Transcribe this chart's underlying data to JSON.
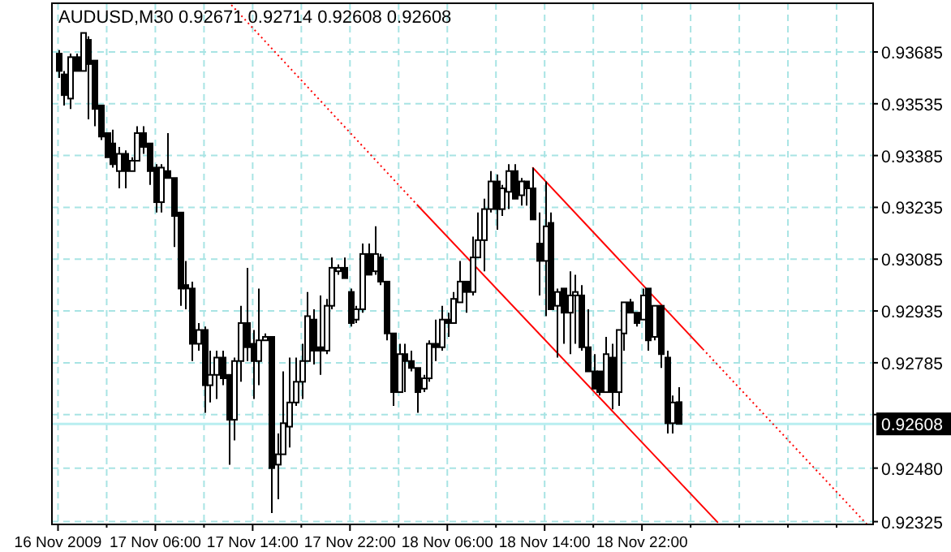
{
  "chart_data": {
    "type": "candlestick",
    "title": "AUDUSD,M30  0.92671 0.92714 0.92608 0.92608",
    "color": "#000000",
    "x": [
      "2009-11-16T22:00",
      "2009-11-16T22:30",
      "2009-11-16T23:00",
      "2009-11-16T23:30",
      "2009-11-17T00:00",
      "2009-11-17T00:30",
      "2009-11-17T01:00",
      "2009-11-17T01:30",
      "2009-11-17T02:00",
      "2009-11-17T02:30",
      "2009-11-17T03:00",
      "2009-11-17T03:30",
      "2009-11-17T04:00",
      "2009-11-17T04:30",
      "2009-11-17T05:00",
      "2009-11-17T05:30",
      "2009-11-17T06:00",
      "2009-11-17T06:30",
      "2009-11-17T07:00",
      "2009-11-17T07:30",
      "2009-11-17T08:00",
      "2009-11-17T08:30",
      "2009-11-17T09:00",
      "2009-11-17T09:30",
      "2009-11-17T10:00",
      "2009-11-17T10:30",
      "2009-11-17T11:00",
      "2009-11-17T11:30",
      "2009-11-17T12:00",
      "2009-11-17T12:30",
      "2009-11-17T13:00",
      "2009-11-17T13:30",
      "2009-11-17T14:00",
      "2009-11-17T14:30",
      "2009-11-17T15:00",
      "2009-11-17T15:30",
      "2009-11-17T16:00",
      "2009-11-17T16:30",
      "2009-11-17T17:00",
      "2009-11-17T17:30",
      "2009-11-17T18:00",
      "2009-11-17T18:30",
      "2009-11-17T19:00",
      "2009-11-17T19:30",
      "2009-11-17T20:00",
      "2009-11-17T20:30",
      "2009-11-17T21:00",
      "2009-11-17T21:30",
      "2009-11-17T22:00",
      "2009-11-17T22:30",
      "2009-11-17T23:00",
      "2009-11-17T23:30",
      "2009-11-18T00:00",
      "2009-11-18T00:30",
      "2009-11-18T01:00",
      "2009-11-18T01:30",
      "2009-11-18T02:00",
      "2009-11-18T02:30",
      "2009-11-18T03:00",
      "2009-11-18T03:30",
      "2009-11-18T04:00",
      "2009-11-18T04:30",
      "2009-11-18T05:00",
      "2009-11-18T05:30",
      "2009-11-18T06:00",
      "2009-11-18T06:30",
      "2009-11-18T07:00",
      "2009-11-18T07:30",
      "2009-11-18T08:00",
      "2009-11-18T08:30",
      "2009-11-18T09:00",
      "2009-11-18T09:30",
      "2009-11-18T10:00",
      "2009-11-18T10:30",
      "2009-11-18T11:00",
      "2009-11-18T11:30",
      "2009-11-18T12:00",
      "2009-11-18T12:30",
      "2009-11-18T13:00",
      "2009-11-18T13:30",
      "2009-11-18T14:00",
      "2009-11-18T14:30",
      "2009-11-18T15:00",
      "2009-11-18T15:30",
      "2009-11-18T16:00",
      "2009-11-18T16:30",
      "2009-11-18T17:00",
      "2009-11-18T17:30",
      "2009-11-18T18:00",
      "2009-11-18T18:30",
      "2009-11-18T19:00",
      "2009-11-18T19:30",
      "2009-11-18T20:00",
      "2009-11-18T20:30",
      "2009-11-18T21:00",
      "2009-11-18T21:30",
      "2009-11-18T22:00",
      "2009-11-18T22:30",
      "2009-11-18T23:00",
      "2009-11-18T23:30",
      "2009-11-19T00:00",
      "2009-11-19T00:30",
      "2009-11-19T01:00"
    ],
    "ohlc": [
      [
        0.9368,
        0.9369,
        0.9361,
        0.9363
      ],
      [
        0.9362,
        0.9363,
        0.9353,
        0.9356
      ],
      [
        0.9355,
        0.9368,
        0.9352,
        0.9367
      ],
      [
        0.9367,
        0.9368,
        0.9363,
        0.9363
      ],
      [
        0.9363,
        0.9374,
        0.9363,
        0.9374
      ],
      [
        0.9372,
        0.9373,
        0.9349,
        0.9365
      ],
      [
        0.9366,
        0.9366,
        0.9347,
        0.9352
      ],
      [
        0.9353,
        0.9353,
        0.9343,
        0.9344
      ],
      [
        0.9345,
        0.9345,
        0.9338,
        0.9338
      ],
      [
        0.9342,
        0.9346,
        0.9335,
        0.9336
      ],
      [
        0.9334,
        0.9341,
        0.9329,
        0.9339
      ],
      [
        0.9339,
        0.934,
        0.9329,
        0.9334
      ],
      [
        0.9334,
        0.9338,
        0.9334,
        0.9337
      ],
      [
        0.9337,
        0.9347,
        0.9337,
        0.9345
      ],
      [
        0.9345,
        0.9347,
        0.9339,
        0.9341
      ],
      [
        0.9342,
        0.9342,
        0.933,
        0.9334
      ],
      [
        0.9335,
        0.9336,
        0.9322,
        0.9325
      ],
      [
        0.9325,
        0.9336,
        0.9322,
        0.9335
      ],
      [
        0.9334,
        0.9345,
        0.9332,
        0.9332
      ],
      [
        0.9332,
        0.9332,
        0.9312,
        0.9321
      ],
      [
        0.9322,
        0.9322,
        0.9295,
        0.93
      ],
      [
        0.9301,
        0.9308,
        0.9294,
        0.93
      ],
      [
        0.93,
        0.9302,
        0.9279,
        0.9284
      ],
      [
        0.9284,
        0.929,
        0.9282,
        0.9288
      ],
      [
        0.9288,
        0.9289,
        0.9264,
        0.9272
      ],
      [
        0.9272,
        0.9282,
        0.9267,
        0.9275
      ],
      [
        0.9275,
        0.9282,
        0.9268,
        0.928
      ],
      [
        0.928,
        0.9282,
        0.9272,
        0.9274
      ],
      [
        0.9275,
        0.9275,
        0.9249,
        0.9262
      ],
      [
        0.9262,
        0.928,
        0.9256,
        0.9279
      ],
      [
        0.9279,
        0.9295,
        0.9273,
        0.929
      ],
      [
        0.929,
        0.9306,
        0.9279,
        0.9283
      ],
      [
        0.9284,
        0.9288,
        0.9268,
        0.9279
      ],
      [
        0.9279,
        0.93,
        0.9272,
        0.9285
      ],
      [
        0.9285,
        0.9287,
        0.9285,
        0.9286
      ],
      [
        0.9286,
        0.9286,
        0.9235,
        0.9248
      ],
      [
        0.9249,
        0.9258,
        0.9239,
        0.9252
      ],
      [
        0.9252,
        0.9276,
        0.9252,
        0.9261
      ],
      [
        0.926,
        0.928,
        0.9254,
        0.9267
      ],
      [
        0.9267,
        0.928,
        0.9266,
        0.9273
      ],
      [
        0.9273,
        0.9284,
        0.9268,
        0.9279
      ],
      [
        0.9279,
        0.9299,
        0.9279,
        0.9292
      ],
      [
        0.9291,
        0.9294,
        0.9278,
        0.9282
      ],
      [
        0.9283,
        0.9298,
        0.9275,
        0.9282
      ],
      [
        0.9282,
        0.9297,
        0.9281,
        0.9295
      ],
      [
        0.9295,
        0.9309,
        0.9294,
        0.9306
      ],
      [
        0.9305,
        0.9307,
        0.9304,
        0.9306
      ],
      [
        0.9306,
        0.9309,
        0.9303,
        0.9303
      ],
      [
        0.9299,
        0.93,
        0.9289,
        0.929
      ],
      [
        0.9291,
        0.9295,
        0.929,
        0.9294
      ],
      [
        0.9294,
        0.9313,
        0.9293,
        0.931
      ],
      [
        0.931,
        0.9313,
        0.9304,
        0.9304
      ],
      [
        0.9305,
        0.9318,
        0.9304,
        0.931
      ],
      [
        0.9309,
        0.931,
        0.9301,
        0.9302
      ],
      [
        0.9302,
        0.9302,
        0.9285,
        0.9287
      ],
      [
        0.9287,
        0.9287,
        0.9266,
        0.927
      ],
      [
        0.927,
        0.9284,
        0.927,
        0.9281
      ],
      [
        0.9281,
        0.9284,
        0.927,
        0.9279
      ],
      [
        0.9279,
        0.9282,
        0.9276,
        0.9277
      ],
      [
        0.9277,
        0.9277,
        0.9264,
        0.927
      ],
      [
        0.9271,
        0.9275,
        0.927,
        0.9274
      ],
      [
        0.9274,
        0.9285,
        0.9273,
        0.9284
      ],
      [
        0.9284,
        0.9291,
        0.9279,
        0.9283
      ],
      [
        0.9283,
        0.9295,
        0.9282,
        0.9291
      ],
      [
        0.9291,
        0.9293,
        0.9286,
        0.929
      ],
      [
        0.929,
        0.9299,
        0.929,
        0.9297
      ],
      [
        0.9296,
        0.9308,
        0.9296,
        0.9302
      ],
      [
        0.9302,
        0.9302,
        0.9293,
        0.9299
      ],
      [
        0.9299,
        0.9315,
        0.9298,
        0.9309
      ],
      [
        0.9309,
        0.9322,
        0.9309,
        0.9314
      ],
      [
        0.9314,
        0.9326,
        0.9305,
        0.9323
      ],
      [
        0.9323,
        0.9334,
        0.9322,
        0.9331
      ],
      [
        0.9331,
        0.9333,
        0.9317,
        0.9323
      ],
      [
        0.9323,
        0.933,
        0.9321,
        0.9329
      ],
      [
        0.9328,
        0.9336,
        0.9323,
        0.9334
      ],
      [
        0.9334,
        0.9336,
        0.9326,
        0.9326
      ],
      [
        0.9327,
        0.9332,
        0.9324,
        0.9331
      ],
      [
        0.9331,
        0.9331,
        0.9324,
        0.9329
      ],
      [
        0.9329,
        0.9335,
        0.932,
        0.932
      ],
      [
        0.9313,
        0.9322,
        0.9298,
        0.9308
      ],
      [
        0.9308,
        0.9331,
        0.9292,
        0.9318
      ],
      [
        0.9319,
        0.9322,
        0.9294,
        0.9294
      ],
      [
        0.9295,
        0.93,
        0.928,
        0.9299
      ],
      [
        0.93,
        0.93,
        0.9284,
        0.9293
      ],
      [
        0.9293,
        0.9305,
        0.9281,
        0.9298
      ],
      [
        0.9298,
        0.9304,
        0.9284,
        0.9299
      ],
      [
        0.9298,
        0.9301,
        0.9282,
        0.9283
      ],
      [
        0.9283,
        0.9294,
        0.9276,
        0.9276
      ],
      [
        0.9276,
        0.9281,
        0.9271,
        0.9271
      ],
      [
        0.9276,
        0.9276,
        0.9269,
        0.927
      ],
      [
        0.927,
        0.9286,
        0.927,
        0.9281
      ],
      [
        0.928,
        0.9284,
        0.9265,
        0.927
      ],
      [
        0.927,
        0.9288,
        0.9266,
        0.9288
      ],
      [
        0.9287,
        0.9296,
        0.9282,
        0.9296
      ],
      [
        0.9296,
        0.9297,
        0.9293,
        0.9293
      ],
      [
        0.9293,
        0.9293,
        0.9289,
        0.929
      ],
      [
        0.9291,
        0.93,
        0.9291,
        0.9298
      ],
      [
        0.93,
        0.93,
        0.9282,
        0.9285
      ],
      [
        0.9286,
        0.9295,
        0.9285,
        0.9295
      ],
      [
        0.9295,
        0.9295,
        0.9277,
        0.9281
      ],
      [
        0.928,
        0.9282,
        0.9258,
        0.9261
      ],
      [
        0.9261,
        0.9269,
        0.9258,
        0.9267
      ],
      [
        0.92671,
        0.92714,
        0.92608,
        0.92608
      ]
    ],
    "series": [
      {
        "type": "line",
        "color": "#ff0000",
        "line_style": "dotted",
        "x": [
          "2009-11-17T12:15",
          "2009-11-18T03:30"
        ],
        "values": [
          0.93821,
          0.93243
        ]
      },
      {
        "type": "line",
        "color": "#ff0000",
        "line_style": "solid",
        "x": [
          "2009-11-18T03:30",
          "2009-11-19T04:15"
        ],
        "values": [
          0.93243,
          0.92322
        ]
      },
      {
        "type": "line",
        "color": "#ff0000",
        "line_style": "solid",
        "x": [
          "2009-11-18T13:00",
          "2009-11-19T03:00"
        ],
        "values": [
          0.93351,
          0.92825
        ]
      },
      {
        "type": "line",
        "color": "#ff0000",
        "line_style": "dotted",
        "x": [
          "2009-11-19T03:00",
          "2009-11-19T16:30"
        ],
        "values": [
          0.92825,
          0.92317
        ]
      }
    ],
    "xlim": [
      "2009-11-16T21:30",
      "2009-11-19T17:00"
    ],
    "xticks": [
      {
        "value": "2009-11-16T22:00",
        "label": "16 Nov 2009"
      },
      {
        "value": "2009-11-17T02:00",
        "label": null
      },
      {
        "value": "2009-11-17T06:00",
        "label": "17 Nov 06:00"
      },
      {
        "value": "2009-11-17T10:00",
        "label": null
      },
      {
        "value": "2009-11-17T14:00",
        "label": "17 Nov 14:00"
      },
      {
        "value": "2009-11-17T18:00",
        "label": null
      },
      {
        "value": "2009-11-17T22:00",
        "label": "17 Nov 22:00"
      },
      {
        "value": "2009-11-18T02:00",
        "label": null
      },
      {
        "value": "2009-11-18T06:00",
        "label": "18 Nov 06:00"
      },
      {
        "value": "2009-11-18T10:00",
        "label": null
      },
      {
        "value": "2009-11-18T14:00",
        "label": "18 Nov 14:00"
      },
      {
        "value": "2009-11-18T18:00",
        "label": null
      },
      {
        "value": "2009-11-18T22:00",
        "label": "18 Nov 22:00"
      },
      {
        "value": "2009-11-19T02:00",
        "label": null
      },
      {
        "value": "2009-11-19T06:00",
        "label": null
      },
      {
        "value": "2009-11-19T10:00",
        "label": null
      },
      {
        "value": "2009-11-19T14:00",
        "label": null
      }
    ],
    "ylim": [
      0.92317,
      0.93826
    ],
    "yticks": [
      0.92325,
      {
        "value": 0.9248,
        "label": "0.92480"
      },
      {
        "value": 0.92635,
        "label": null
      },
      0.92785,
      0.92935,
      0.93085,
      0.93235,
      0.93385,
      0.93535,
      0.93685
    ],
    "ref_lines": [
      {
        "axis": "y",
        "value": 0.92608,
        "label": "0.92608",
        "color": "#b8eef0"
      }
    ],
    "grid": true
  }
}
